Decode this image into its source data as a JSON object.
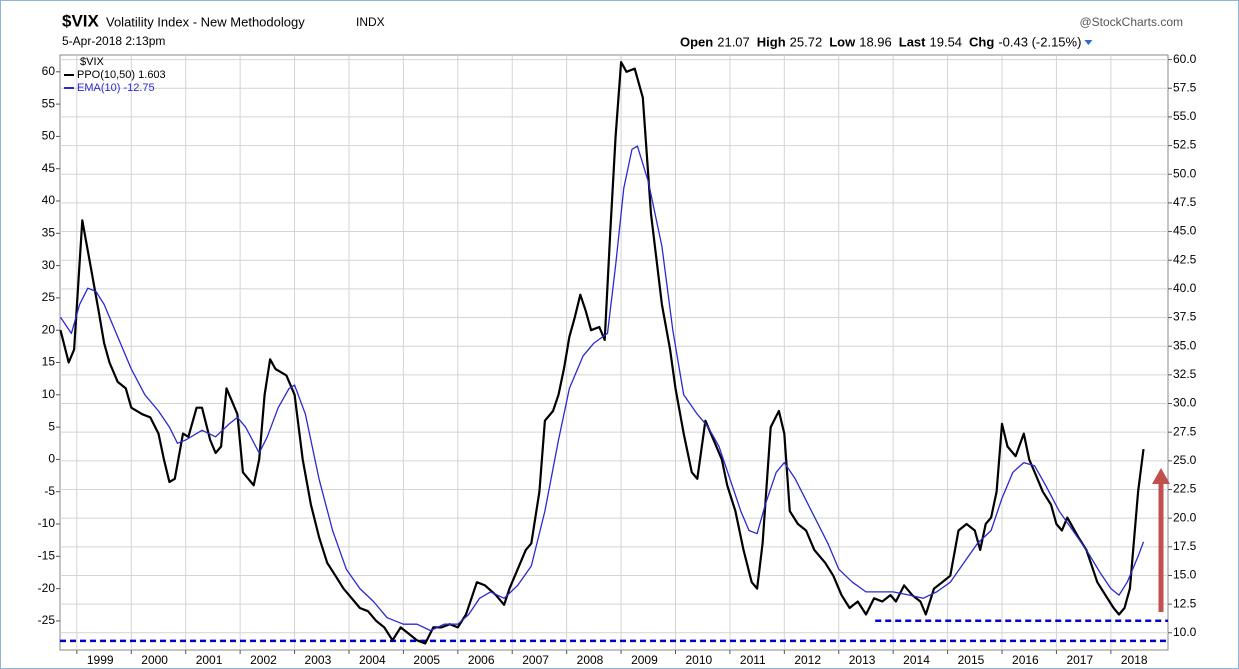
{
  "chart_data": {
    "type": "line",
    "symbol": "$VIX",
    "title": "Volatility Index - New Methodology",
    "exchange": "INDX",
    "source": "@StockCharts.com",
    "date": "5-Apr-2018 2:13pm",
    "quote": [
      {
        "label": "Open",
        "value": "21.07"
      },
      {
        "label": "High",
        "value": "25.72"
      },
      {
        "label": "Low",
        "value": "18.96"
      },
      {
        "label": "Last",
        "value": "19.54"
      },
      {
        "label": "Chg",
        "value": "-0.43 (-2.15%)"
      }
    ],
    "legend_title": "$VIX",
    "legend_position": "upper left",
    "grid": true,
    "xlim": [
      1998.69,
      2019.05
    ],
    "xticks": [
      1999,
      2000,
      2001,
      2002,
      2003,
      2004,
      2005,
      2006,
      2007,
      2008,
      2009,
      2010,
      2011,
      2012,
      2013,
      2014,
      2015,
      2016,
      2017,
      2018
    ],
    "ylim": [
      -29.5,
      62.6
    ],
    "yticks": [
      -25,
      -20,
      -15,
      -10,
      -5,
      0,
      5,
      10,
      15,
      20,
      25,
      30,
      35,
      40,
      45,
      50,
      55,
      60
    ],
    "y2lim": [
      8.5,
      60.4
    ],
    "y2ticks": [
      {
        "value": 10,
        "label": "10.0"
      },
      {
        "value": 12.5,
        "label": "12.5"
      },
      {
        "value": 15,
        "label": "15.0"
      },
      {
        "value": 17.5,
        "label": "17.5"
      },
      {
        "value": 20,
        "label": "20.0"
      },
      {
        "value": 22.5,
        "label": "22.5"
      },
      {
        "value": 25,
        "label": "25.0"
      },
      {
        "value": 27.5,
        "label": "27.5"
      },
      {
        "value": 30,
        "label": "30.0"
      },
      {
        "value": 32.5,
        "label": "32.5"
      },
      {
        "value": 35,
        "label": "35.0"
      },
      {
        "value": 37.5,
        "label": "37.5"
      },
      {
        "value": 40,
        "label": "40.0"
      },
      {
        "value": 42.5,
        "label": "42.5"
      },
      {
        "value": 45,
        "label": "45.0"
      },
      {
        "value": 47.5,
        "label": "47.5"
      },
      {
        "value": 50,
        "label": "50.0"
      },
      {
        "value": 52.5,
        "label": "52.5"
      },
      {
        "value": 55,
        "label": "55.0"
      },
      {
        "value": 57.5,
        "label": "57.5"
      },
      {
        "value": 60,
        "label": "60.0"
      }
    ],
    "reference_lines": [
      {
        "value": 9.3,
        "axis": "y2",
        "color": "#0000cc",
        "x_start": 1998.69
      },
      {
        "value": 11.05,
        "axis": "y2",
        "color": "#0000cc",
        "x_start": 2013.67
      }
    ],
    "series": [
      {
        "name": "PPO(10,50) 1.603",
        "color": "#000000",
        "x": [
          1998.7,
          1998.85,
          1998.95,
          1999.1,
          1999.25,
          1999.4,
          1999.5,
          1999.6,
          1999.75,
          1999.9,
          2000.0,
          2000.2,
          2000.35,
          2000.5,
          2000.6,
          2000.7,
          2000.8,
          2000.95,
          2001.05,
          2001.2,
          2001.3,
          2001.45,
          2001.55,
          2001.65,
          2001.75,
          2001.85,
          2001.95,
          2002.05,
          2002.15,
          2002.25,
          2002.35,
          2002.45,
          2002.55,
          2002.65,
          2002.75,
          2002.85,
          2003.0,
          2003.15,
          2003.3,
          2003.45,
          2003.6,
          2003.75,
          2003.9,
          2004.0,
          2004.2,
          2004.35,
          2004.5,
          2004.65,
          2004.8,
          2004.95,
          2005.1,
          2005.25,
          2005.4,
          2005.55,
          2005.7,
          2005.85,
          2006.0,
          2006.15,
          2006.35,
          2006.5,
          2006.7,
          2006.85,
          2006.95,
          2007.1,
          2007.25,
          2007.35,
          2007.5,
          2007.6,
          2007.75,
          2007.85,
          2007.95,
          2008.05,
          2008.15,
          2008.25,
          2008.35,
          2008.45,
          2008.6,
          2008.7,
          2008.8,
          2008.9,
          2009.0,
          2009.1,
          2009.25,
          2009.4,
          2009.55,
          2009.75,
          2009.9,
          2010.0,
          2010.15,
          2010.3,
          2010.4,
          2010.55,
          2010.7,
          2010.85,
          2010.95,
          2011.1,
          2011.25,
          2011.4,
          2011.5,
          2011.6,
          2011.75,
          2011.9,
          2012.0,
          2012.1,
          2012.25,
          2012.4,
          2012.55,
          2012.75,
          2012.9,
          2013.05,
          2013.2,
          2013.35,
          2013.5,
          2013.65,
          2013.8,
          2013.95,
          2014.05,
          2014.2,
          2014.35,
          2014.5,
          2014.6,
          2014.75,
          2014.9,
          2015.05,
          2015.2,
          2015.35,
          2015.5,
          2015.6,
          2015.7,
          2015.8,
          2015.9,
          2016.0,
          2016.1,
          2016.25,
          2016.4,
          2016.5,
          2016.6,
          2016.75,
          2016.9,
          2017.0,
          2017.1,
          2017.2,
          2017.4,
          2017.55,
          2017.75,
          2017.9,
          2018.05,
          2018.15,
          2018.25,
          2018.35,
          2018.5,
          2018.6
        ],
        "values": [
          20,
          15,
          17,
          37,
          30,
          23,
          18,
          15,
          12,
          11,
          8,
          7,
          6.5,
          4,
          0,
          -3.5,
          -3,
          4,
          3.5,
          8,
          8,
          3,
          1,
          2,
          11,
          9,
          7,
          -2,
          -3,
          -4,
          0,
          10,
          15.5,
          14,
          13.5,
          13,
          10,
          0,
          -7,
          -12,
          -16,
          -18,
          -20,
          -21,
          -23,
          -23.5,
          -25,
          -26,
          -28,
          -26,
          -27,
          -28,
          -28.5,
          -26,
          -26,
          -25.5,
          -26,
          -24,
          -19,
          -19.5,
          -21,
          -22.5,
          -20,
          -17,
          -14,
          -13,
          -5,
          6,
          7.5,
          10,
          14,
          19,
          22,
          25.5,
          23,
          20,
          20.5,
          18.5,
          35,
          50,
          61.5,
          60,
          60.5,
          56,
          38,
          24,
          17,
          11,
          4,
          -2,
          -3,
          6,
          3,
          0,
          -4,
          -8,
          -14,
          -19,
          -20,
          -13,
          5,
          7.5,
          4,
          -8,
          -10,
          -11,
          -14,
          -16,
          -18,
          -21,
          -23,
          -22,
          -24,
          -21.5,
          -22,
          -21,
          -22,
          -19.5,
          -21,
          -22,
          -24,
          -20,
          -19,
          -18,
          -11,
          -10,
          -11,
          -14,
          -10,
          -9,
          -5,
          5.5,
          2,
          0.5,
          4,
          0,
          -2,
          -5,
          -7,
          -10,
          -11,
          -9,
          -12,
          -14,
          -19,
          -21,
          -23,
          -24,
          -23,
          -20,
          -5,
          1.6
        ]
      },
      {
        "name": "EMA(10) -12.75",
        "color": "#2a2ad0",
        "x": [
          1998.7,
          1998.9,
          1999.05,
          1999.2,
          1999.35,
          1999.5,
          1999.75,
          2000.0,
          2000.25,
          2000.5,
          2000.7,
          2000.85,
          2001.0,
          2001.3,
          2001.55,
          2001.8,
          2001.95,
          2002.1,
          2002.35,
          2002.5,
          2002.7,
          2002.9,
          2003.0,
          2003.2,
          2003.45,
          2003.7,
          2003.95,
          2004.2,
          2004.45,
          2004.7,
          2005.0,
          2005.25,
          2005.5,
          2005.75,
          2006.0,
          2006.2,
          2006.4,
          2006.6,
          2006.85,
          2007.1,
          2007.35,
          2007.6,
          2007.85,
          2008.05,
          2008.3,
          2008.5,
          2008.75,
          2008.9,
          2009.05,
          2009.2,
          2009.3,
          2009.5,
          2009.75,
          2009.95,
          2010.15,
          2010.4,
          2010.6,
          2010.8,
          2011.0,
          2011.2,
          2011.35,
          2011.5,
          2011.65,
          2011.85,
          2012.0,
          2012.2,
          2012.5,
          2012.8,
          2013.0,
          2013.25,
          2013.5,
          2013.75,
          2014.0,
          2014.3,
          2014.55,
          2014.8,
          2015.05,
          2015.3,
          2015.55,
          2015.8,
          2016.0,
          2016.2,
          2016.4,
          2016.6,
          2016.8,
          2017.05,
          2017.3,
          2017.55,
          2017.8,
          2018.0,
          2018.15,
          2018.3,
          2018.5,
          2018.6
        ],
        "values": [
          22,
          19.5,
          24,
          26.5,
          26,
          24,
          19,
          14,
          10,
          7.5,
          5,
          2.5,
          3,
          4.5,
          3.5,
          5.5,
          6.5,
          5,
          1,
          3.5,
          8,
          11,
          11.5,
          7,
          -3,
          -11,
          -17,
          -20,
          -22,
          -24.5,
          -25.5,
          -25.5,
          -26.5,
          -25.5,
          -25.5,
          -24,
          -21.5,
          -20.5,
          -21.5,
          -19.5,
          -16.5,
          -8,
          3,
          11,
          16,
          18,
          19.5,
          30,
          42,
          48,
          48.5,
          43,
          33,
          20,
          10,
          7,
          5,
          2,
          -3,
          -8,
          -11,
          -11.5,
          -7,
          -2,
          -0.5,
          -3,
          -8,
          -13,
          -17,
          -19,
          -20.5,
          -20.5,
          -20.5,
          -21,
          -21.5,
          -20.5,
          -19,
          -16,
          -13,
          -11,
          -6,
          -2,
          -0.5,
          -1,
          -4,
          -8,
          -11,
          -14,
          -17.5,
          -20,
          -21,
          -19,
          -15,
          -12.75
        ]
      }
    ]
  }
}
